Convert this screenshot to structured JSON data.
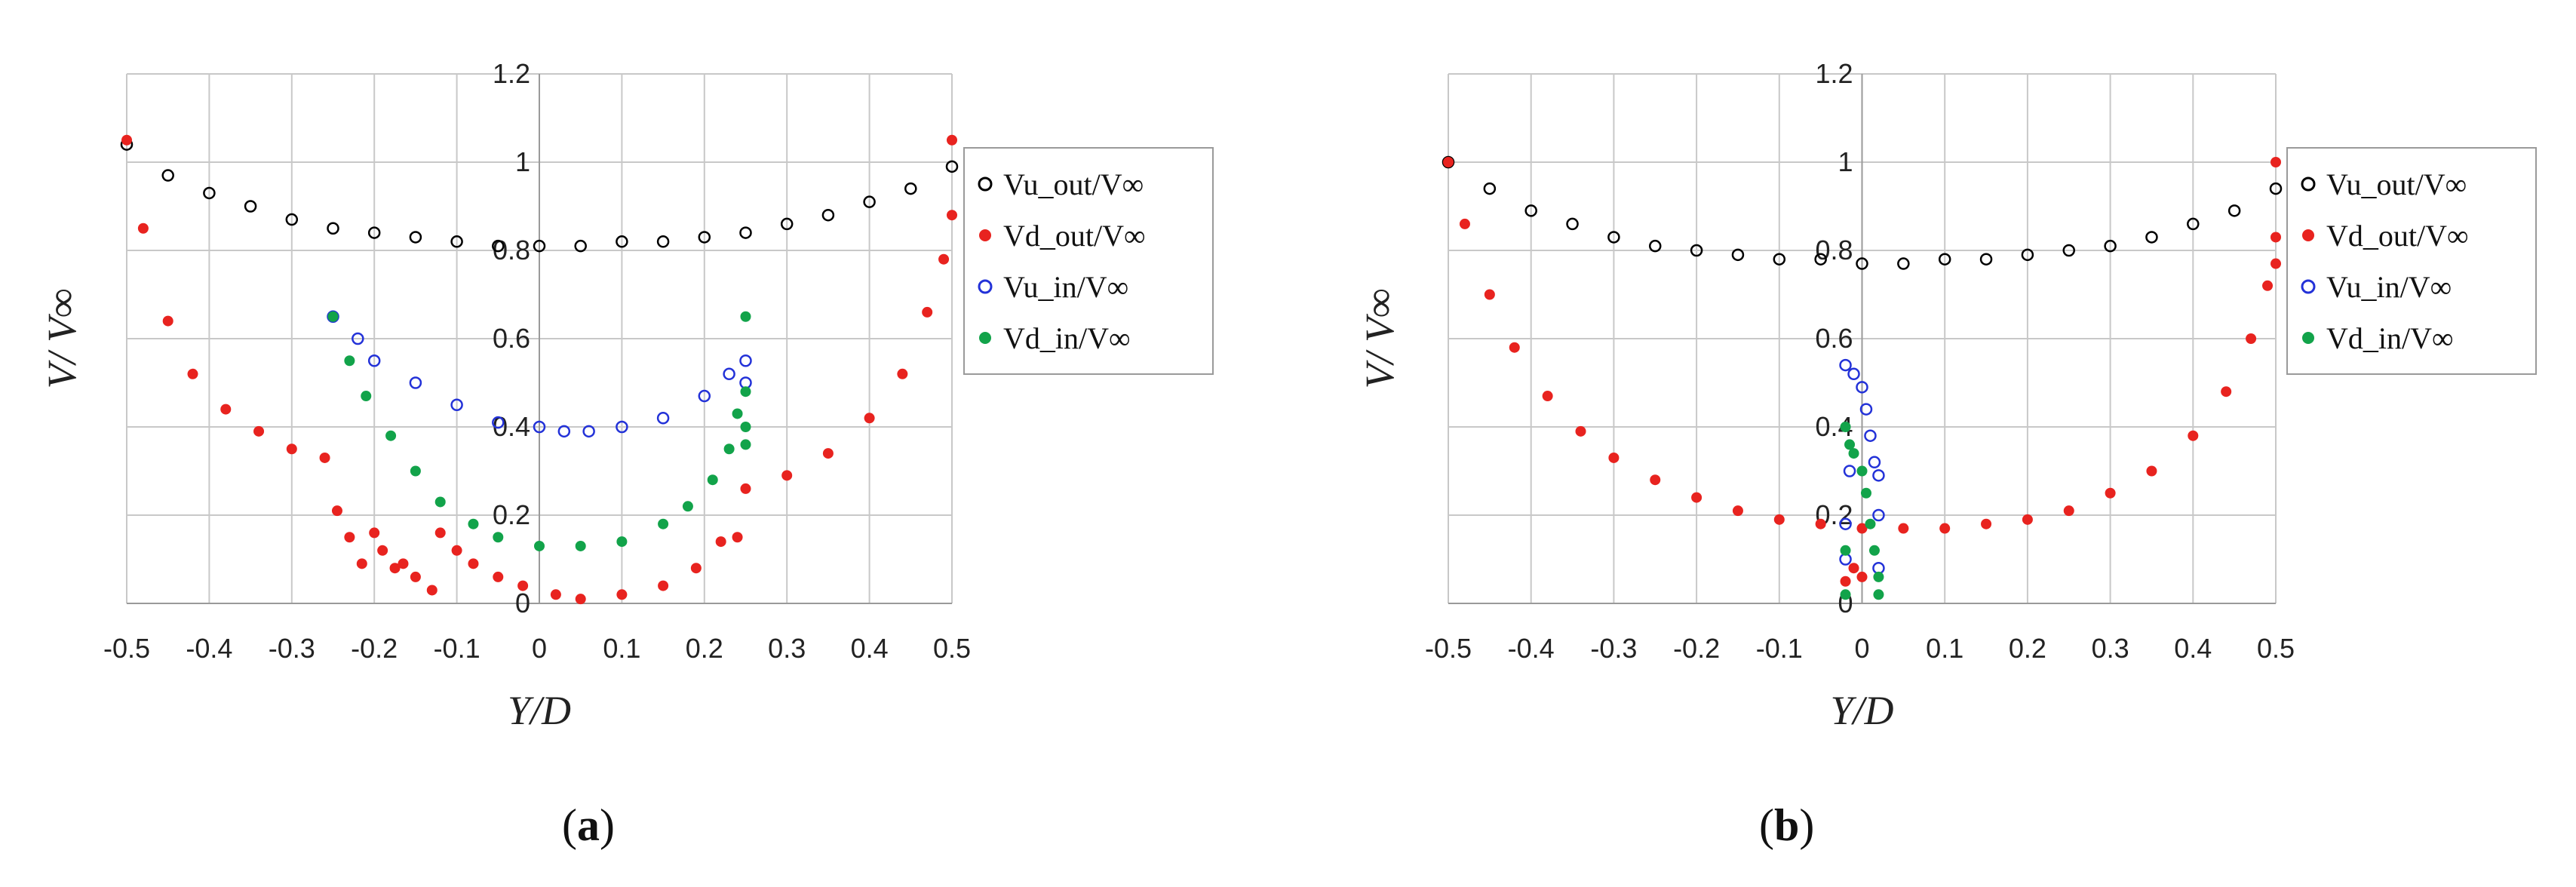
{
  "panels": [
    {
      "caption_letter": "a"
    },
    {
      "caption_letter": "b"
    }
  ],
  "chart_data": [
    {
      "type": "scatter",
      "xlabel": "Y/D",
      "ylabel": "V/ V∞",
      "xlim": [
        -0.5,
        0.5
      ],
      "ylim": [
        0,
        1.2
      ],
      "xticks": [
        "-0.5",
        "-0.4",
        "-0.3",
        "-0.2",
        "-0.1",
        "0",
        "0.1",
        "0.2",
        "0.3",
        "0.4",
        "0.5"
      ],
      "yticks": [
        "0",
        "0.2",
        "0.4",
        "0.6",
        "0.8",
        "1",
        "1.2"
      ],
      "grid": true,
      "legend_position": "right",
      "series": [
        {
          "name": "Vu_out/V∞",
          "color": "#000000",
          "marker": "open-circle",
          "points": [
            [
              -0.5,
              1.04
            ],
            [
              -0.45,
              0.97
            ],
            [
              -0.4,
              0.93
            ],
            [
              -0.35,
              0.9
            ],
            [
              -0.3,
              0.87
            ],
            [
              -0.25,
              0.85
            ],
            [
              -0.2,
              0.84
            ],
            [
              -0.15,
              0.83
            ],
            [
              -0.1,
              0.82
            ],
            [
              -0.05,
              0.81
            ],
            [
              0,
              0.81
            ],
            [
              0.05,
              0.81
            ],
            [
              0.1,
              0.82
            ],
            [
              0.15,
              0.82
            ],
            [
              0.2,
              0.83
            ],
            [
              0.25,
              0.84
            ],
            [
              0.3,
              0.86
            ],
            [
              0.35,
              0.88
            ],
            [
              0.4,
              0.91
            ],
            [
              0.45,
              0.94
            ],
            [
              0.5,
              0.99
            ]
          ]
        },
        {
          "name": "Vd_out/V∞",
          "color": "#e8231f",
          "marker": "filled-circle",
          "points": [
            [
              -0.5,
              1.05
            ],
            [
              -0.48,
              0.85
            ],
            [
              -0.45,
              0.64
            ],
            [
              -0.42,
              0.52
            ],
            [
              -0.38,
              0.44
            ],
            [
              -0.34,
              0.39
            ],
            [
              -0.3,
              0.35
            ],
            [
              -0.26,
              0.33
            ],
            [
              -0.245,
              0.21
            ],
            [
              -0.23,
              0.15
            ],
            [
              -0.215,
              0.09
            ],
            [
              -0.2,
              0.16
            ],
            [
              -0.19,
              0.12
            ],
            [
              -0.175,
              0.08
            ],
            [
              -0.165,
              0.09
            ],
            [
              -0.15,
              0.06
            ],
            [
              -0.13,
              0.03
            ],
            [
              -0.12,
              0.16
            ],
            [
              -0.1,
              0.12
            ],
            [
              -0.08,
              0.09
            ],
            [
              -0.05,
              0.06
            ],
            [
              -0.02,
              0.04
            ],
            [
              0.02,
              0.02
            ],
            [
              0.05,
              0.01
            ],
            [
              0.1,
              0.02
            ],
            [
              0.15,
              0.04
            ],
            [
              0.19,
              0.08
            ],
            [
              0.22,
              0.14
            ],
            [
              0.24,
              0.15
            ],
            [
              0.25,
              0.26
            ],
            [
              0.3,
              0.29
            ],
            [
              0.35,
              0.34
            ],
            [
              0.4,
              0.42
            ],
            [
              0.44,
              0.52
            ],
            [
              0.47,
              0.66
            ],
            [
              0.49,
              0.78
            ],
            [
              0.5,
              0.88
            ],
            [
              0.5,
              1.05
            ]
          ]
        },
        {
          "name": "Vu_in/V∞",
          "color": "#2332d8",
          "marker": "open-circle",
          "points": [
            [
              -0.25,
              0.65
            ],
            [
              -0.22,
              0.6
            ],
            [
              -0.2,
              0.55
            ],
            [
              -0.15,
              0.5
            ],
            [
              -0.1,
              0.45
            ],
            [
              -0.05,
              0.41
            ],
            [
              0,
              0.4
            ],
            [
              0.03,
              0.39
            ],
            [
              0.06,
              0.39
            ],
            [
              0.1,
              0.4
            ],
            [
              0.15,
              0.42
            ],
            [
              0.2,
              0.47
            ],
            [
              0.23,
              0.52
            ],
            [
              0.25,
              0.55
            ],
            [
              0.25,
              0.5
            ]
          ]
        },
        {
          "name": "Vd_in/V∞",
          "color": "#12a34a",
          "marker": "filled-circle",
          "points": [
            [
              -0.25,
              0.65
            ],
            [
              -0.23,
              0.55
            ],
            [
              -0.21,
              0.47
            ],
            [
              -0.18,
              0.38
            ],
            [
              -0.15,
              0.3
            ],
            [
              -0.12,
              0.23
            ],
            [
              -0.08,
              0.18
            ],
            [
              -0.05,
              0.15
            ],
            [
              0,
              0.13
            ],
            [
              0.05,
              0.13
            ],
            [
              0.1,
              0.14
            ],
            [
              0.15,
              0.18
            ],
            [
              0.18,
              0.22
            ],
            [
              0.21,
              0.28
            ],
            [
              0.23,
              0.35
            ],
            [
              0.24,
              0.43
            ],
            [
              0.25,
              0.48
            ],
            [
              0.25,
              0.65
            ],
            [
              0.25,
              0.4
            ],
            [
              0.25,
              0.36
            ]
          ]
        }
      ]
    },
    {
      "type": "scatter",
      "xlabel": "Y/D",
      "ylabel": "V/ V∞",
      "xlim": [
        -0.5,
        0.5
      ],
      "ylim": [
        0,
        1.2
      ],
      "xticks": [
        "-0.5",
        "-0.4",
        "-0.3",
        "-0.2",
        "-0.1",
        "0",
        "0.1",
        "0.2",
        "0.3",
        "0.4",
        "0.5"
      ],
      "yticks": [
        "0",
        "0.2",
        "0.4",
        "0.6",
        "0.8",
        "1",
        "1.2"
      ],
      "grid": true,
      "legend_position": "right",
      "series": [
        {
          "name": "Vu_out/V∞",
          "color": "#000000",
          "marker": "open-circle",
          "points": [
            [
              -0.5,
              1.0
            ],
            [
              -0.45,
              0.94
            ],
            [
              -0.4,
              0.89
            ],
            [
              -0.35,
              0.86
            ],
            [
              -0.3,
              0.83
            ],
            [
              -0.25,
              0.81
            ],
            [
              -0.2,
              0.8
            ],
            [
              -0.15,
              0.79
            ],
            [
              -0.1,
              0.78
            ],
            [
              -0.05,
              0.78
            ],
            [
              0,
              0.77
            ],
            [
              0.05,
              0.77
            ],
            [
              0.1,
              0.78
            ],
            [
              0.15,
              0.78
            ],
            [
              0.2,
              0.79
            ],
            [
              0.25,
              0.8
            ],
            [
              0.3,
              0.81
            ],
            [
              0.35,
              0.83
            ],
            [
              0.4,
              0.86
            ],
            [
              0.45,
              0.89
            ],
            [
              0.5,
              0.94
            ]
          ]
        },
        {
          "name": "Vd_out/V∞",
          "color": "#e8231f",
          "marker": "filled-circle",
          "points": [
            [
              -0.5,
              1.0
            ],
            [
              -0.48,
              0.86
            ],
            [
              -0.45,
              0.7
            ],
            [
              -0.42,
              0.58
            ],
            [
              -0.38,
              0.47
            ],
            [
              -0.34,
              0.39
            ],
            [
              -0.3,
              0.33
            ],
            [
              -0.25,
              0.28
            ],
            [
              -0.2,
              0.24
            ],
            [
              -0.15,
              0.21
            ],
            [
              -0.1,
              0.19
            ],
            [
              -0.05,
              0.18
            ],
            [
              0,
              0.17
            ],
            [
              0.05,
              0.17
            ],
            [
              0.1,
              0.17
            ],
            [
              0.15,
              0.18
            ],
            [
              0.2,
              0.19
            ],
            [
              0.25,
              0.21
            ],
            [
              0.3,
              0.25
            ],
            [
              0.35,
              0.3
            ],
            [
              0.4,
              0.38
            ],
            [
              0.44,
              0.48
            ],
            [
              0.47,
              0.6
            ],
            [
              0.49,
              0.72
            ],
            [
              0.5,
              0.77
            ],
            [
              0.5,
              0.83
            ],
            [
              0.5,
              1.0
            ],
            [
              -0.02,
              0.05
            ],
            [
              -0.01,
              0.08
            ],
            [
              0.0,
              0.06
            ]
          ]
        },
        {
          "name": "Vu_in/V∞",
          "color": "#2332d8",
          "marker": "open-circle",
          "points": [
            [
              -0.02,
              0.54
            ],
            [
              -0.01,
              0.52
            ],
            [
              0,
              0.49
            ],
            [
              0.005,
              0.44
            ],
            [
              0.01,
              0.38
            ],
            [
              0.015,
              0.32
            ],
            [
              0.02,
              0.29
            ],
            [
              0.02,
              0.2
            ],
            [
              0.02,
              0.08
            ],
            [
              -0.02,
              0.18
            ],
            [
              -0.02,
              0.1
            ],
            [
              -0.015,
              0.3
            ]
          ]
        },
        {
          "name": "Vd_in/V∞",
          "color": "#12a34a",
          "marker": "filled-circle",
          "points": [
            [
              -0.02,
              0.4
            ],
            [
              -0.015,
              0.36
            ],
            [
              -0.01,
              0.34
            ],
            [
              0,
              0.3
            ],
            [
              0.005,
              0.25
            ],
            [
              0.01,
              0.18
            ],
            [
              0.015,
              0.12
            ],
            [
              0.02,
              0.06
            ],
            [
              0.02,
              0.02
            ],
            [
              -0.02,
              0.02
            ],
            [
              -0.02,
              0.12
            ]
          ]
        }
      ]
    }
  ]
}
